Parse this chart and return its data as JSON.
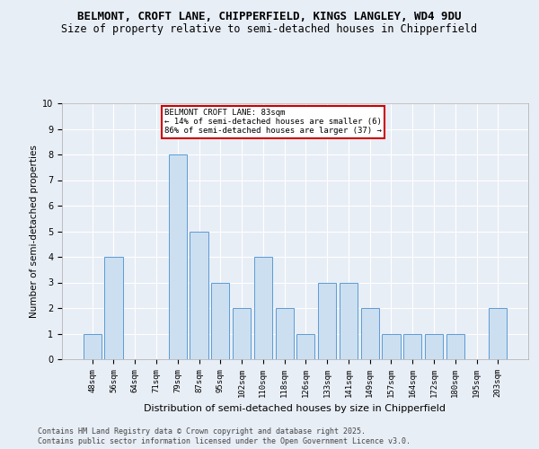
{
  "title1": "BELMONT, CROFT LANE, CHIPPERFIELD, KINGS LANGLEY, WD4 9DU",
  "title2": "Size of property relative to semi-detached houses in Chipperfield",
  "xlabel": "Distribution of semi-detached houses by size in Chipperfield",
  "ylabel": "Number of semi-detached properties",
  "categories": [
    "48sqm",
    "56sqm",
    "64sqm",
    "71sqm",
    "79sqm",
    "87sqm",
    "95sqm",
    "102sqm",
    "110sqm",
    "118sqm",
    "126sqm",
    "133sqm",
    "141sqm",
    "149sqm",
    "157sqm",
    "164sqm",
    "172sqm",
    "180sqm",
    "195sqm",
    "203sqm"
  ],
  "values": [
    1,
    4,
    0,
    0,
    8,
    5,
    3,
    2,
    4,
    2,
    1,
    3,
    3,
    2,
    1,
    1,
    1,
    1,
    0,
    2
  ],
  "bar_color": "#ccdff0",
  "bar_edge_color": "#5b9bd5",
  "annotation_title": "BELMONT CROFT LANE: 83sqm",
  "annotation_line2": "← 14% of semi-detached houses are smaller (6)",
  "annotation_line3": "86% of semi-detached houses are larger (37) →",
  "annotation_box_color": "#ffffff",
  "annotation_box_edge": "#cc0000",
  "ylim": [
    0,
    10
  ],
  "yticks": [
    0,
    1,
    2,
    3,
    4,
    5,
    6,
    7,
    8,
    9,
    10
  ],
  "footer1": "Contains HM Land Registry data © Crown copyright and database right 2025.",
  "footer2": "Contains public sector information licensed under the Open Government Licence v3.0.",
  "bg_color": "#e8eef6",
  "plot_bg_color": "#e8eef6",
  "grid_color": "#ffffff",
  "title_fontsize": 9,
  "subtitle_fontsize": 8.5,
  "axis_label_fontsize": 7.5,
  "tick_fontsize": 6.5,
  "footer_fontsize": 6,
  "ann_fontsize": 6.5
}
